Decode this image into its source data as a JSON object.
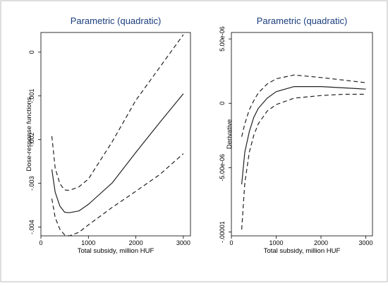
{
  "chart_data": [
    {
      "type": "line",
      "title": "Parametric (quadratic)",
      "xlabel": "Total subsidy, million HUF",
      "ylabel": "Dose-response functions",
      "xlim": [
        0,
        3150
      ],
      "ylim": [
        -0.0042,
        0.00045
      ],
      "x_ticks": [
        0,
        1000,
        2000,
        3000
      ],
      "x_tick_labels": [
        "0",
        "1000",
        "2000",
        "3000"
      ],
      "y_ticks": [
        0,
        -0.001,
        -0.002,
        -0.003,
        -0.004
      ],
      "y_tick_labels": [
        "0",
        "-.001",
        "-.002",
        "-.003",
        "-.004"
      ],
      "grid": false,
      "series": [
        {
          "style": "solid",
          "x": [
            230,
            300,
            400,
            500,
            600,
            800,
            1000,
            1500,
            2000,
            2500,
            3000
          ],
          "y": [
            -0.00268,
            -0.0032,
            -0.00352,
            -0.00366,
            -0.00367,
            -0.00363,
            -0.00348,
            -0.00299,
            -0.00229,
            -0.00161,
            -0.00095
          ]
        },
        {
          "style": "dashed",
          "x": [
            230,
            300,
            400,
            500,
            600,
            800,
            1000,
            1500,
            2000,
            2500,
            3000
          ],
          "y": [
            -0.00192,
            -0.00265,
            -0.00301,
            -0.00315,
            -0.00316,
            -0.00308,
            -0.0029,
            -0.00205,
            -0.0011,
            -0.00035,
            0.0004
          ]
        },
        {
          "style": "dashed",
          "x": [
            230,
            300,
            400,
            500,
            600,
            800,
            1000,
            1500,
            2000,
            2500,
            3000
          ],
          "y": [
            -0.00335,
            -0.00378,
            -0.00405,
            -0.00418,
            -0.0042,
            -0.00412,
            -0.00395,
            -0.00355,
            -0.00318,
            -0.0028,
            -0.00232
          ]
        }
      ]
    },
    {
      "type": "line",
      "title": "Parametric (quadratic)",
      "xlabel": "Total subsidy, million HUF",
      "ylabel": "Derivative",
      "xlim": [
        0,
        3150
      ],
      "ylim": [
        -1.03e-05,
        5.5e-06
      ],
      "x_ticks": [
        0,
        1000,
        2000,
        3000
      ],
      "x_tick_labels": [
        "0",
        "1000",
        "2000",
        "3000"
      ],
      "y_ticks": [
        5e-06,
        0,
        -5e-06,
        -1e-05
      ],
      "y_tick_labels": [
        "5.00e-06",
        "0",
        "-5.00e-06",
        "-.00001"
      ],
      "grid": false,
      "series": [
        {
          "style": "solid",
          "x": [
            230,
            300,
            400,
            500,
            600,
            800,
            1000,
            1400,
            2000,
            2500,
            3000
          ],
          "y": [
            -6.3e-06,
            -3.8e-06,
            -2.2e-06,
            -1.1e-06,
            -4e-07,
            4e-07,
            9e-07,
            1.3e-06,
            1.3e-06,
            1.2e-06,
            1.1e-06
          ]
        },
        {
          "style": "dashed",
          "x": [
            230,
            300,
            400,
            500,
            600,
            800,
            1000,
            1400,
            2000,
            2500,
            3000
          ],
          "y": [
            -2.6e-06,
            -1.6e-06,
            -5e-07,
            2e-07,
            8e-07,
            1.5e-06,
            1.9e-06,
            2.2e-06,
            2e-06,
            1.8e-06,
            1.6e-06
          ]
        },
        {
          "style": "dashed",
          "x": [
            230,
            300,
            400,
            500,
            600,
            800,
            1000,
            1400,
            2000,
            2500,
            3000
          ],
          "y": [
            -9.8e-06,
            -6.2e-06,
            -3.8e-06,
            -2.5e-06,
            -1.6e-06,
            -6e-07,
            -1e-07,
            4e-07,
            6e-07,
            7e-07,
            7e-07
          ]
        }
      ]
    }
  ]
}
